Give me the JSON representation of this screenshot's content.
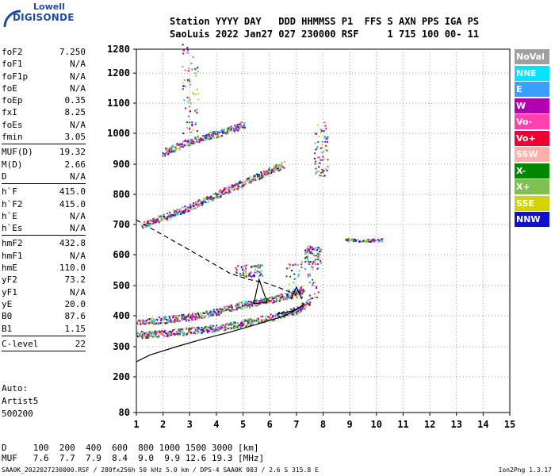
{
  "logo": {
    "top": "Lowell",
    "bottom": "DIGISONDE"
  },
  "header": {
    "row1": "Station YYYY DAY   DDD HHMMSS P1  FFS S AXN PPS IGA PS",
    "row2": "SaoLuis 2022 Jan27 027 230000 RSF     1 715 100 00- 11"
  },
  "params": [
    {
      "label": "foF2",
      "value": "7.250"
    },
    {
      "label": "foF1",
      "value": "N/A"
    },
    {
      "label": "foF1p",
      "value": "N/A"
    },
    {
      "label": "foE",
      "value": "N/A"
    },
    {
      "label": "foEp",
      "value": "0.35"
    },
    {
      "label": "fxI",
      "value": "8.25"
    },
    {
      "label": "foEs",
      "value": "N/A"
    },
    {
      "label": "fmin",
      "value": "3.05"
    },
    {
      "sep": true
    },
    {
      "label": "MUF(D)",
      "value": "19.32"
    },
    {
      "label": "M(D)",
      "value": "2.66"
    },
    {
      "label": "D",
      "value": "N/A"
    },
    {
      "sep": true
    },
    {
      "label": "h`F",
      "value": "415.0"
    },
    {
      "label": "h`F2",
      "value": "415.0"
    },
    {
      "label": "h`E",
      "value": "N/A"
    },
    {
      "label": "h`Es",
      "value": "N/A"
    },
    {
      "sep": true
    },
    {
      "label": "hmF2",
      "value": "432.8"
    },
    {
      "label": "hmF1",
      "value": "N/A"
    },
    {
      "label": "hmE",
      "value": "110.0"
    },
    {
      "label": "yF2",
      "value": "73.2"
    },
    {
      "label": "yF1",
      "value": "N/A"
    },
    {
      "label": "yE",
      "value": "20.0"
    },
    {
      "label": "B0",
      "value": "87.6"
    },
    {
      "label": "B1",
      "value": "1.15"
    },
    {
      "sep": true
    },
    {
      "label": "C-level",
      "value": "22"
    },
    {
      "sep": true
    }
  ],
  "auto": {
    "line1": "Auto:",
    "line2": "Artist5",
    "line3": "500200"
  },
  "muf_table": {
    "row_d": "D     100  200  400  600  800 1000 1500 3000 [km]",
    "row_muf": "MUF   7.6  7.7  7.9  8.4  9.0  9.9 12.6 19.3 [MHz]"
  },
  "footer": "SAA0K_2022027230000.RSF / 280fx256h 50 kHz 5.0 km / DPS-4 SAA0K 903 / 2.6 S 315.8 E",
  "version": "Ion2Png 1.3.17",
  "legend": [
    {
      "label": "NoVal",
      "color": "#a0a0a0"
    },
    {
      "label": "NNE",
      "color": "#00e5ff"
    },
    {
      "label": "E",
      "color": "#3aa0ff"
    },
    {
      "label": "W",
      "color": "#b000b0"
    },
    {
      "label": "Vo-",
      "color": "#ff40b0"
    },
    {
      "label": "Vo+",
      "color": "#ee0033"
    },
    {
      "label": "SSW",
      "color": "#ffb0a8"
    },
    {
      "label": "X-",
      "color": "#008800"
    },
    {
      "label": "X+",
      "color": "#80c050"
    },
    {
      "label": "SSE",
      "color": "#d4d400"
    },
    {
      "label": "NNW",
      "color": "#1010d0"
    }
  ],
  "chart_data": {
    "type": "scatter",
    "xlabel": "",
    "ylabel": "",
    "xlim": [
      1,
      15
    ],
    "ylim": [
      80,
      1280
    ],
    "xticks": [
      1,
      2,
      3,
      4,
      5,
      6,
      7,
      8,
      9,
      10,
      11,
      12,
      13,
      14,
      15
    ],
    "yticks": [
      80,
      200,
      300,
      400,
      500,
      600,
      700,
      800,
      900,
      1000,
      1100,
      1200,
      1280
    ],
    "grid": true,
    "echo_bands": [
      {
        "name": "lower-trace-upper",
        "color_key": "mixed",
        "points": [
          [
            1.0,
            380
          ],
          [
            2,
            388
          ],
          [
            3,
            398
          ],
          [
            4,
            415
          ],
          [
            5,
            438
          ],
          [
            6,
            455
          ],
          [
            6.8,
            470
          ],
          [
            7.2,
            490
          ]
        ]
      },
      {
        "name": "lower-trace-lower",
        "color_key": "mixed",
        "points": [
          [
            1.0,
            340
          ],
          [
            2,
            345
          ],
          [
            3,
            352
          ],
          [
            4,
            362
          ],
          [
            5,
            378
          ],
          [
            6,
            395
          ],
          [
            7,
            420
          ],
          [
            7.5,
            450
          ]
        ]
      },
      {
        "name": "second-hop",
        "color_key": "mixed",
        "points": [
          [
            1.2,
            700
          ],
          [
            2,
            725
          ],
          [
            3,
            760
          ],
          [
            4,
            800
          ],
          [
            5,
            840
          ],
          [
            6,
            880
          ],
          [
            6.5,
            900
          ]
        ]
      },
      {
        "name": "third-hop",
        "color_key": "mixed",
        "points": [
          [
            2,
            940
          ],
          [
            3,
            975
          ],
          [
            4,
            1000
          ],
          [
            5,
            1030
          ]
        ]
      }
    ],
    "profile_solid": [
      [
        1.0,
        250
      ],
      [
        1.5,
        272
      ],
      [
        2.5,
        300
      ],
      [
        3.5,
        325
      ],
      [
        4.5,
        347
      ],
      [
        5.5,
        372
      ],
      [
        6.5,
        398
      ],
      [
        7.0,
        420
      ],
      [
        7.3,
        440
      ],
      [
        7.2,
        430
      ],
      [
        6.8,
        415
      ],
      [
        6.3,
        405
      ]
    ],
    "profile_dashed": [
      [
        1.0,
        715
      ],
      [
        1.5,
        690
      ],
      [
        2.5,
        640
      ],
      [
        3.5,
        590
      ],
      [
        4.5,
        540
      ],
      [
        5.2,
        520
      ],
      [
        5.8,
        510
      ],
      [
        6.3,
        495
      ],
      [
        7.0,
        470
      ]
    ]
  }
}
